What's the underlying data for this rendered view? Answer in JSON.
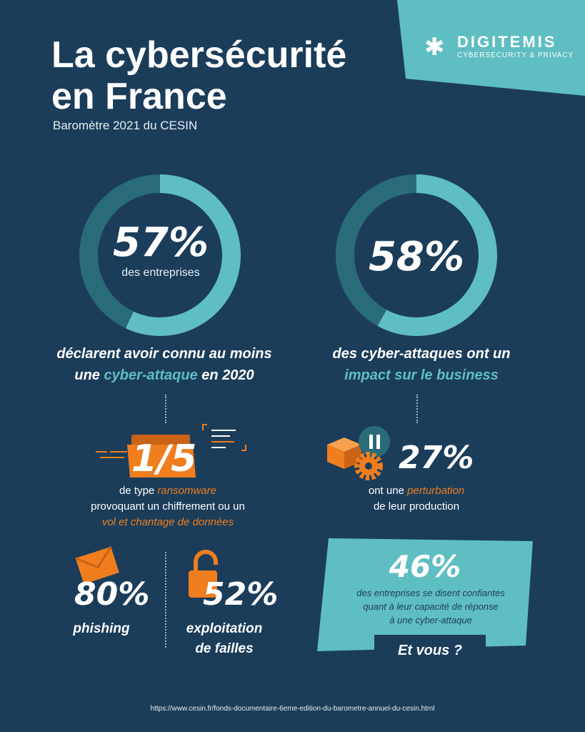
{
  "header": {
    "title_line1": "La cybersécurité",
    "title_line2": "en France",
    "subtitle": "Baromètre 2021 du CESIN"
  },
  "brand": {
    "name": "DIGITEMIS",
    "tagline": "CYBERSECURITY & PRIVACY"
  },
  "colors": {
    "background": "#1b3d5a",
    "teal": "#5fbec2",
    "dark_teal": "#2a6b78",
    "orange": "#f07d1e"
  },
  "chart_data": [
    {
      "type": "pie",
      "values": [
        57,
        43
      ],
      "label": "57%",
      "sublabel": "des entreprises",
      "caption_a": "déclarent avoir connu au moins",
      "caption_b": "une ",
      "caption_highlight": "cyber-attaque",
      "caption_c": " en 2020"
    },
    {
      "type": "pie",
      "values": [
        58,
        42
      ],
      "label": "58%",
      "caption_a": "des cyber-attaques ont un",
      "caption_highlight": "impact sur le business"
    }
  ],
  "stats": {
    "ransomware": {
      "value": "1/5",
      "line1_a": "de type ",
      "line1_hl": "ransomware",
      "line2": "provoquant un chiffrement ou un",
      "line3_hl": "vol et chantage de données"
    },
    "perturbation": {
      "value": "27%",
      "line1_a": "ont une ",
      "line1_hl": "perturbation",
      "line2": "de leur production"
    },
    "phishing": {
      "value": "80%",
      "label": "phishing"
    },
    "failles": {
      "value": "52%",
      "label_1": "exploitation",
      "label_2": "de failles"
    },
    "confiance": {
      "value": "46%",
      "line1": "des entreprises se disent confiantes",
      "line2": "quant à leur capacité  de réponse",
      "line3": "à une cyber-attaque",
      "cta": "Et vous ?"
    }
  },
  "source": "https://www.cesin.fr/fonds-documentaire-6eme-edition-du-barometre-annuel-du-cesin.html"
}
